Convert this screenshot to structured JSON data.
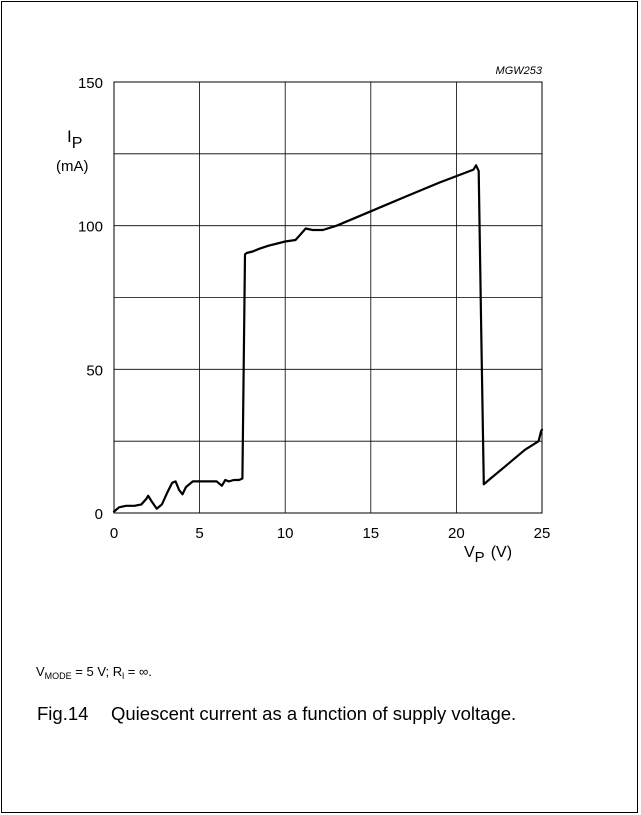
{
  "chart_data": {
    "type": "line",
    "code": "MGW253",
    "ylabel": {
      "symbol": "I",
      "sub": "P",
      "unit": "(mA)"
    },
    "xlabel": {
      "symbol": "V",
      "sub": "P",
      "unit": "(V)"
    },
    "xlim": [
      0,
      25
    ],
    "ylim": [
      0,
      150
    ],
    "x_ticks": [
      "0",
      "5",
      "10",
      "15",
      "20",
      "25"
    ],
    "y_ticks": [
      "0",
      "50",
      "100",
      "150"
    ],
    "grid": true,
    "series": [
      {
        "x": [
          0,
          0.3,
          0.7,
          1.2,
          1.6,
          1.9,
          2.0,
          2.2,
          2.5,
          2.8,
          3.1,
          3.4,
          3.6,
          3.8,
          4.0,
          4.2,
          4.6,
          5.0,
          5.5,
          6.0,
          6.2,
          6.3,
          6.5,
          6.7,
          7.0,
          7.3,
          7.5,
          7.65,
          7.75,
          8.1,
          8.5,
          9.0,
          10.0,
          10.6,
          10.9,
          11.2,
          11.6,
          12.2,
          13.0,
          15.0,
          17.0,
          19.0,
          21.0,
          21.15,
          21.3,
          21.45,
          21.6,
          22.0,
          23.0,
          24.0,
          24.8,
          24.95,
          25.0
        ],
        "y": [
          0.5,
          2,
          2.5,
          2.5,
          3,
          5,
          6,
          4,
          1.5,
          3,
          7,
          10.5,
          11,
          8,
          6.5,
          9,
          11,
          11,
          11,
          11,
          10,
          9.5,
          11.5,
          11,
          11.5,
          11.5,
          12,
          90,
          90.5,
          91,
          92,
          93,
          94.5,
          95,
          97,
          99,
          98.5,
          98.5,
          100,
          105,
          110,
          115,
          119.5,
          121,
          119,
          64,
          10,
          12,
          17,
          22,
          25,
          28.5,
          29
        ]
      }
    ]
  },
  "conditions": {
    "v_sym": "V",
    "v_sub": "MODE",
    "v_rest": " = 5 V; R",
    "r_sub": "l",
    "r_rest": " = ∞."
  },
  "caption": {
    "label": "Fig.14",
    "text": "Quiescent current as a function of supply voltage."
  }
}
